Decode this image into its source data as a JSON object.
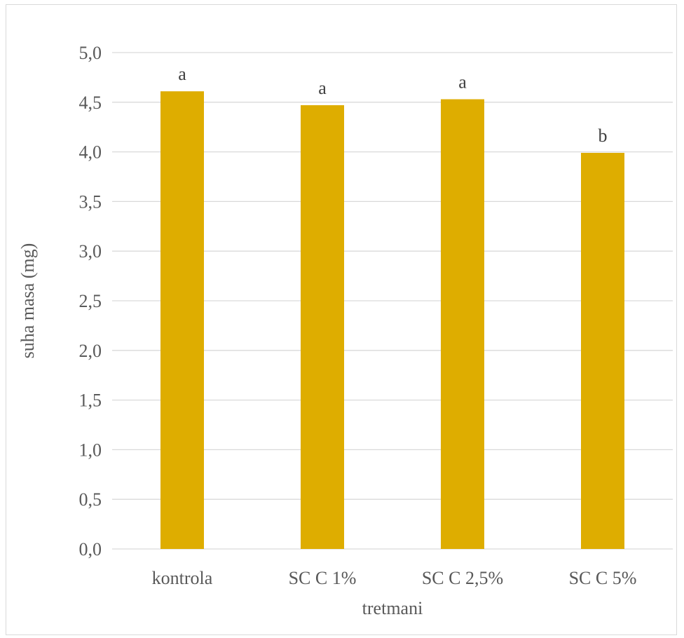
{
  "chart_data": {
    "type": "bar",
    "categories": [
      "kontrola",
      "SC C 1%",
      "SC C 2,5%",
      "SC C 5%"
    ],
    "values": [
      4.61,
      4.47,
      4.53,
      3.99
    ],
    "annotations": [
      "a",
      "a",
      "a",
      "b"
    ],
    "xlabel": "tretmani",
    "ylabel": "suha masa (mg)",
    "ylim": [
      0,
      5
    ],
    "yticks": [
      "0,0",
      "0,5",
      "1,0",
      "1,5",
      "2,0",
      "2,5",
      "3,0",
      "3,5",
      "4,0",
      "4,5",
      "5,0"
    ],
    "grid": true,
    "bar_color": "#DEAD00",
    "grid_color": "#D9D9D9"
  }
}
